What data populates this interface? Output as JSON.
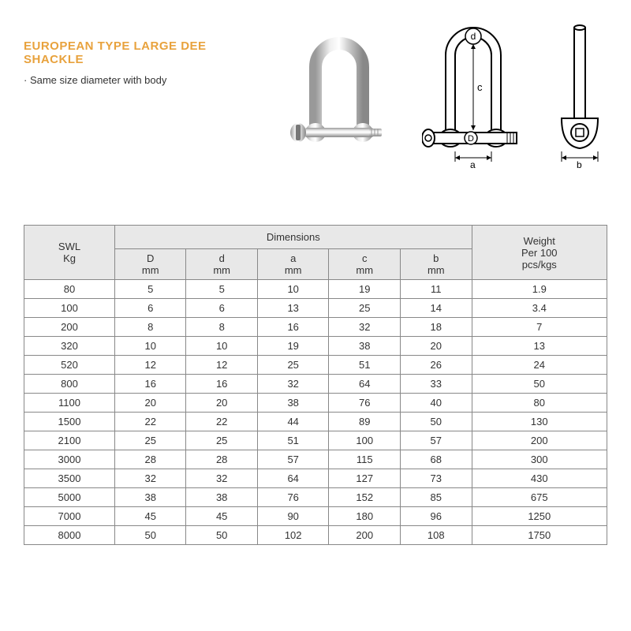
{
  "title": "EUROPEAN TYPE LARGE DEE SHACKLE",
  "subtitle": "Same size diameter with body",
  "diagram_labels": {
    "d": "d",
    "c": "c",
    "D": "D",
    "a": "a",
    "b": "b"
  },
  "table": {
    "header_swl": "SWL\nKg",
    "header_dimensions": "Dimensions",
    "header_weight": "Weight\nPer 100\npcs/kgs",
    "sub_headers": [
      "D\nmm",
      "d\nmm",
      "a\nmm",
      "c\nmm",
      "b\nmm"
    ],
    "rows": [
      [
        "80",
        "5",
        "5",
        "10",
        "19",
        "11",
        "1.9"
      ],
      [
        "100",
        "6",
        "6",
        "13",
        "25",
        "14",
        "3.4"
      ],
      [
        "200",
        "8",
        "8",
        "16",
        "32",
        "18",
        "7"
      ],
      [
        "320",
        "10",
        "10",
        "19",
        "38",
        "20",
        "13"
      ],
      [
        "520",
        "12",
        "12",
        "25",
        "51",
        "26",
        "24"
      ],
      [
        "800",
        "16",
        "16",
        "32",
        "64",
        "33",
        "50"
      ],
      [
        "1100",
        "20",
        "20",
        "38",
        "76",
        "40",
        "80"
      ],
      [
        "1500",
        "22",
        "22",
        "44",
        "89",
        "50",
        "130"
      ],
      [
        "2100",
        "25",
        "25",
        "51",
        "100",
        "57",
        "200"
      ],
      [
        "3000",
        "28",
        "28",
        "57",
        "115",
        "68",
        "300"
      ],
      [
        "3500",
        "32",
        "32",
        "64",
        "127",
        "73",
        "430"
      ],
      [
        "5000",
        "38",
        "38",
        "76",
        "152",
        "85",
        "675"
      ],
      [
        "7000",
        "45",
        "45",
        "90",
        "180",
        "96",
        "1250"
      ],
      [
        "8000",
        "50",
        "50",
        "102",
        "200",
        "108",
        "1750"
      ]
    ]
  },
  "colors": {
    "title": "#e8a23d",
    "border": "#888888",
    "header_bg": "#e8e8e8",
    "text": "#333333"
  }
}
